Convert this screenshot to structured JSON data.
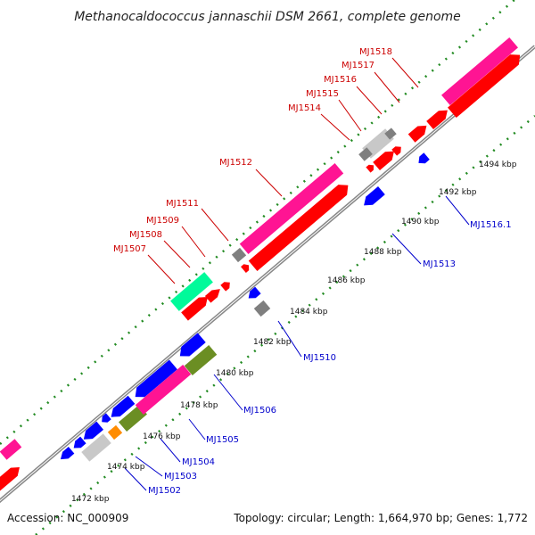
{
  "title": "Methanocaldococcus jannaschii DSM 2661, complete genome",
  "accession": "Accession: NC_000909",
  "summary": "Topology: circular; Length: 1,664,970 bp; Genes: 1,772",
  "kbp_ticks": [
    "1472 kbp",
    "1474 kbp",
    "1476 kbp",
    "1478 kbp",
    "1480 kbp",
    "1482 kbp",
    "1484 kbp",
    "1486 kbp",
    "1488 kbp",
    "1490 kbp",
    "1492 kbp",
    "1494 kbp"
  ],
  "labels_forward": [
    "MJ1507",
    "MJ1508",
    "MJ1509",
    "MJ1511",
    "MJ1512",
    "MJ1514",
    "MJ1515",
    "MJ1516",
    "MJ1517",
    "MJ1518"
  ],
  "labels_reverse": [
    "MJ1502",
    "MJ1503",
    "MJ1504",
    "MJ1505",
    "MJ1506",
    "MJ1510",
    "MJ1513",
    "MJ1516.1"
  ],
  "colors": {
    "forward_label": "#cc0000",
    "reverse_label": "#0000cc",
    "red": "#ff0000",
    "blue": "#0000ff",
    "pink": "#ff1493",
    "gray": "#7f7f7f",
    "light_gray": "#c8c8c8",
    "olive": "#6b8e23",
    "teal": "#00fa9a",
    "orange": "#ff8c00",
    "backbone": "#888888",
    "ruler": "#228b22"
  }
}
